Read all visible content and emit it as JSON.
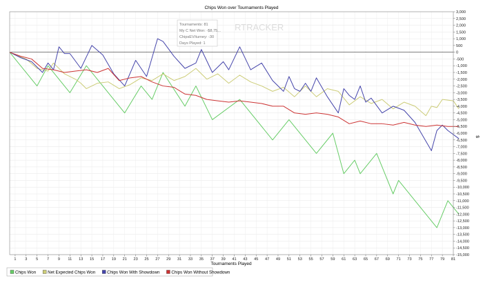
{
  "chart_data": {
    "type": "line",
    "title": "Chips Won over Tournaments Played",
    "xlabel": "Tournaments Played",
    "ylabel": "$",
    "xlim": [
      0,
      81
    ],
    "ylim": [
      -15000,
      3000
    ],
    "xticks": [
      1,
      3,
      5,
      7,
      9,
      11,
      13,
      15,
      17,
      19,
      21,
      23,
      25,
      27,
      29,
      31,
      33,
      35,
      37,
      39,
      41,
      43,
      45,
      47,
      49,
      51,
      53,
      55,
      57,
      59,
      61,
      63,
      65,
      67,
      69,
      71,
      73,
      75,
      77,
      79,
      81
    ],
    "yticks": [
      3000,
      2500,
      2000,
      1500,
      1000,
      500,
      0,
      -500,
      -1000,
      -1500,
      -2000,
      -2500,
      -3000,
      -3500,
      -4000,
      -4500,
      -5000,
      -5500,
      -6000,
      -6500,
      -7000,
      -7500,
      -8000,
      -8500,
      -9000,
      -9500,
      -10000,
      -10500,
      -11000,
      -11500,
      -12000,
      -12500,
      -13000,
      -13500,
      -14000,
      -14500,
      -15000
    ],
    "ytick_labels": [
      "3,000",
      "2,500",
      "2,000",
      "1,500",
      "1,000",
      "500",
      "0",
      "-500",
      "-1,000",
      "-1,500",
      "-2,000",
      "-2,500",
      "-3,000",
      "-3,500",
      "-4,000",
      "-4,500",
      "-5,000",
      "-5,500",
      "-6,000",
      "-6,500",
      "-7,000",
      "-7,500",
      "-8,000",
      "-8,500",
      "-9,000",
      "-9,500",
      "-10,000",
      "-10,500",
      "-11,000",
      "-11,500",
      "-12,000",
      "-12,500",
      "-13,000",
      "-13,500",
      "-14,000",
      "-14,500",
      "-15,000"
    ],
    "grid": true,
    "legend_position": "bottom-left",
    "series": [
      {
        "name": "Chips Won",
        "color": "#66cc66",
        "points": [
          [
            0,
            0
          ],
          [
            5,
            -2500
          ],
          [
            7,
            -1000
          ],
          [
            11,
            -3000
          ],
          [
            14,
            -1000
          ],
          [
            21,
            -4500
          ],
          [
            24,
            -2500
          ],
          [
            26,
            -3500
          ],
          [
            28,
            -1500
          ],
          [
            32,
            -4000
          ],
          [
            34,
            -2500
          ],
          [
            37,
            -5000
          ],
          [
            42,
            -3500
          ],
          [
            48,
            -6500
          ],
          [
            51,
            -5000
          ],
          [
            56,
            -7500
          ],
          [
            59,
            -6000
          ],
          [
            61,
            -9000
          ],
          [
            63,
            -8000
          ],
          [
            64,
            -9000
          ],
          [
            67,
            -7500
          ],
          [
            70,
            -10500
          ],
          [
            71,
            -9500
          ],
          [
            78,
            -13000
          ],
          [
            80,
            -11000
          ],
          [
            82,
            -12000
          ]
        ]
      },
      {
        "name": "Net Expected Chips Won",
        "color": "#cccc77",
        "points": [
          [
            0,
            0
          ],
          [
            1,
            -200
          ],
          [
            3,
            -500
          ],
          [
            5,
            -1200
          ],
          [
            7,
            -1400
          ],
          [
            8,
            -800
          ],
          [
            10,
            -1600
          ],
          [
            12,
            -2000
          ],
          [
            13,
            -2300
          ],
          [
            14,
            -2700
          ],
          [
            16,
            -2300
          ],
          [
            18,
            -2200
          ],
          [
            20,
            -2700
          ],
          [
            22,
            -2400
          ],
          [
            24,
            -1900
          ],
          [
            26,
            -2100
          ],
          [
            28,
            -1600
          ],
          [
            30,
            -2100
          ],
          [
            32,
            -1800
          ],
          [
            34,
            -1200
          ],
          [
            36,
            -2000
          ],
          [
            38,
            -1600
          ],
          [
            40,
            -2300
          ],
          [
            42,
            -1700
          ],
          [
            44,
            -2200
          ],
          [
            46,
            -2500
          ],
          [
            48,
            -2900
          ],
          [
            50,
            -2600
          ],
          [
            52,
            -3300
          ],
          [
            54,
            -2500
          ],
          [
            56,
            -3300
          ],
          [
            58,
            -2700
          ],
          [
            60,
            -2900
          ],
          [
            62,
            -3900
          ],
          [
            64,
            -3300
          ],
          [
            66,
            -3800
          ],
          [
            68,
            -3500
          ],
          [
            70,
            -4200
          ],
          [
            72,
            -3700
          ],
          [
            74,
            -4000
          ],
          [
            76,
            -4700
          ],
          [
            77,
            -4000
          ],
          [
            78,
            -4100
          ],
          [
            79,
            -3500
          ],
          [
            81,
            -3600
          ],
          [
            82,
            -4200
          ]
        ]
      },
      {
        "name": "Chips Won With Showdown",
        "color": "#4444aa",
        "points": [
          [
            0,
            0
          ],
          [
            2,
            -400
          ],
          [
            4,
            -700
          ],
          [
            6,
            -1500
          ],
          [
            7,
            -800
          ],
          [
            8,
            -1300
          ],
          [
            9,
            400
          ],
          [
            10,
            -100
          ],
          [
            11,
            -100
          ],
          [
            13,
            -1200
          ],
          [
            15,
            500
          ],
          [
            17,
            -200
          ],
          [
            19,
            -1600
          ],
          [
            21,
            -2500
          ],
          [
            23,
            -600
          ],
          [
            25,
            -1800
          ],
          [
            27,
            1000
          ],
          [
            28,
            800
          ],
          [
            30,
            -300
          ],
          [
            32,
            -1200
          ],
          [
            34,
            -800
          ],
          [
            35,
            200
          ],
          [
            37,
            -1500
          ],
          [
            39,
            -700
          ],
          [
            40,
            -1300
          ],
          [
            42,
            400
          ],
          [
            44,
            -1300
          ],
          [
            46,
            -800
          ],
          [
            48,
            -2100
          ],
          [
            50,
            -2900
          ],
          [
            51,
            -1800
          ],
          [
            52,
            -2700
          ],
          [
            53,
            -2900
          ],
          [
            54,
            -2300
          ],
          [
            55,
            -2900
          ],
          [
            56,
            -1900
          ],
          [
            58,
            -3300
          ],
          [
            60,
            -4500
          ],
          [
            61,
            -2700
          ],
          [
            62,
            -3200
          ],
          [
            63,
            -3500
          ],
          [
            64,
            -2500
          ],
          [
            65,
            -3700
          ],
          [
            66,
            -3400
          ],
          [
            68,
            -4500
          ],
          [
            70,
            -4000
          ],
          [
            72,
            -4300
          ],
          [
            74,
            -5200
          ],
          [
            76,
            -6600
          ],
          [
            77,
            -7300
          ],
          [
            78,
            -5800
          ],
          [
            79,
            -5400
          ],
          [
            80,
            -5800
          ],
          [
            82,
            -6400
          ]
        ]
      },
      {
        "name": "Chips Won Without Showdown",
        "color": "#cc3333",
        "points": [
          [
            0,
            0
          ],
          [
            2,
            -300
          ],
          [
            4,
            -500
          ],
          [
            6,
            -1200
          ],
          [
            8,
            -1300
          ],
          [
            10,
            -1500
          ],
          [
            12,
            -1400
          ],
          [
            14,
            -1300
          ],
          [
            16,
            -1500
          ],
          [
            18,
            -1200
          ],
          [
            20,
            -2100
          ],
          [
            22,
            -1900
          ],
          [
            24,
            -1800
          ],
          [
            26,
            -2200
          ],
          [
            28,
            -2500
          ],
          [
            30,
            -2600
          ],
          [
            32,
            -3100
          ],
          [
            34,
            -3200
          ],
          [
            36,
            -3500
          ],
          [
            38,
            -3600
          ],
          [
            40,
            -3700
          ],
          [
            42,
            -3600
          ],
          [
            44,
            -3700
          ],
          [
            46,
            -3800
          ],
          [
            48,
            -4000
          ],
          [
            50,
            -4000
          ],
          [
            52,
            -4500
          ],
          [
            54,
            -4600
          ],
          [
            56,
            -4500
          ],
          [
            58,
            -4600
          ],
          [
            60,
            -4800
          ],
          [
            62,
            -5300
          ],
          [
            64,
            -5100
          ],
          [
            66,
            -5300
          ],
          [
            68,
            -5300
          ],
          [
            70,
            -5400
          ],
          [
            72,
            -5200
          ],
          [
            74,
            -5400
          ],
          [
            76,
            -5500
          ],
          [
            78,
            -5400
          ],
          [
            80,
            -5500
          ],
          [
            82,
            -5500
          ]
        ]
      }
    ],
    "tooltip": {
      "lines": [
        "Tournaments: 81",
        "My C Net Won: -$8,75...",
        "ChipsEV/turney: -30",
        "Days Played: 1"
      ],
      "watermark": "RTRACKER"
    }
  }
}
